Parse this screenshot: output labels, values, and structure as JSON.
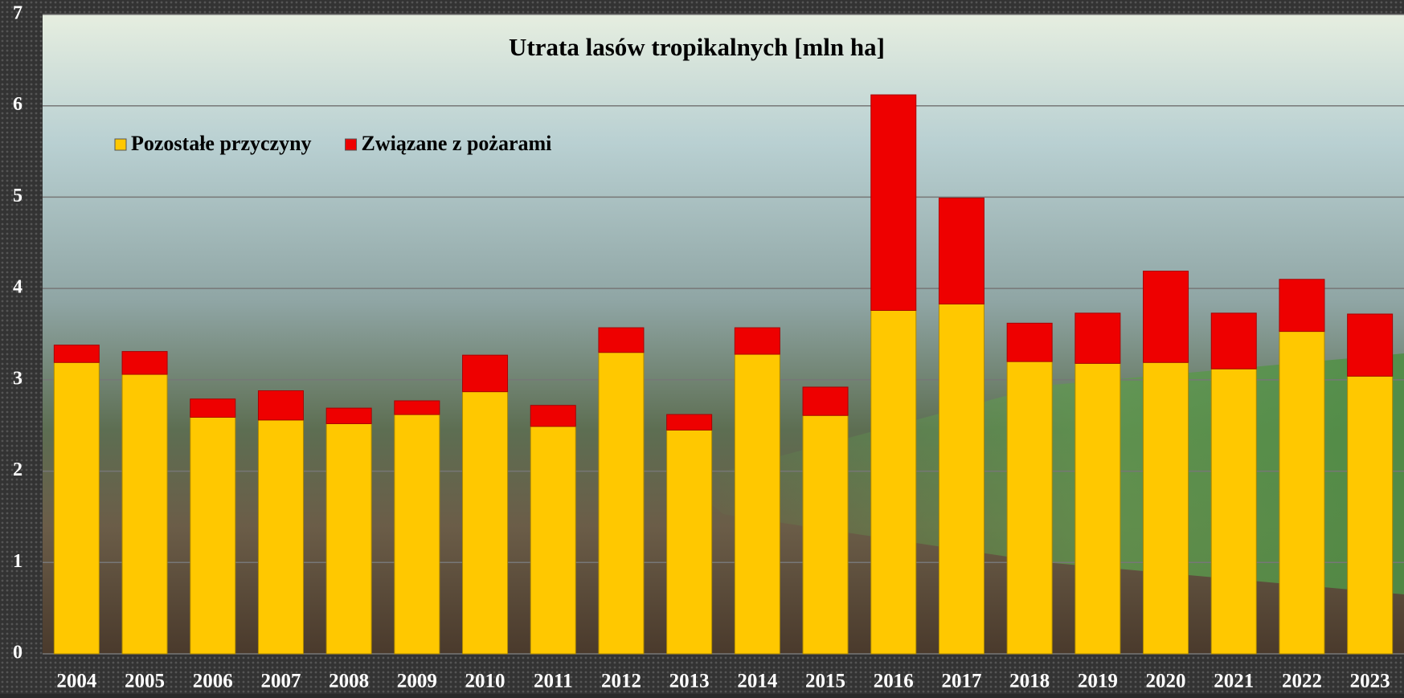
{
  "chart_data": {
    "type": "stacked_bar",
    "title": "Utrata lasów tropikalnych [mln ha]",
    "categories": [
      "2004",
      "2005",
      "2006",
      "2007",
      "2008",
      "2009",
      "2010",
      "2011",
      "2012",
      "2013",
      "2014",
      "2015",
      "2016",
      "2017",
      "2018",
      "2019",
      "2020",
      "2021",
      "2022",
      "2023"
    ],
    "series": [
      {
        "name": "Pozostałe przyczyny",
        "color": "#ffc800",
        "values": [
          3.19,
          3.06,
          2.59,
          2.56,
          2.52,
          2.62,
          2.87,
          2.49,
          3.3,
          2.45,
          3.28,
          2.61,
          3.76,
          3.83,
          3.2,
          3.18,
          3.19,
          3.12,
          3.53,
          3.04
        ]
      },
      {
        "name": "Związane z pożarami",
        "color": "#ee0000",
        "values": [
          0.19,
          0.25,
          0.2,
          0.32,
          0.17,
          0.15,
          0.4,
          0.23,
          0.27,
          0.17,
          0.29,
          0.31,
          2.36,
          1.16,
          0.42,
          0.55,
          1.0,
          0.61,
          0.57,
          0.68
        ]
      }
    ],
    "ylim": [
      0,
      7
    ],
    "yticks": [
      0,
      1,
      2,
      3,
      4,
      5,
      6,
      7
    ],
    "grid": true,
    "legend": "top-left"
  }
}
